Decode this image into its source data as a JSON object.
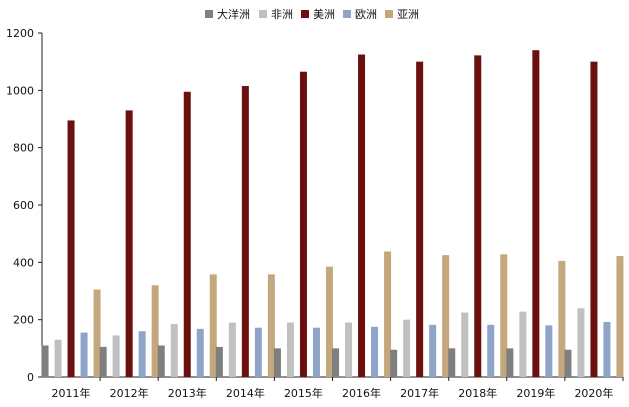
{
  "chart_data": {
    "type": "bar",
    "title": "",
    "xlabel": "",
    "ylabel": "",
    "categories": [
      "2011年",
      "2012年",
      "2013年",
      "2014年",
      "2015年",
      "2016年",
      "2017年",
      "2018年",
      "2019年",
      "2020年"
    ],
    "series": [
      {
        "name": "大洋洲",
        "color": "#7f7f7f",
        "values": [
          110,
          105,
          110,
          105,
          100,
          100,
          95,
          100,
          100,
          95
        ]
      },
      {
        "name": "非洲",
        "color": "#c0c0c0",
        "values": [
          130,
          145,
          185,
          190,
          190,
          190,
          200,
          225,
          228,
          240
        ]
      },
      {
        "name": "美洲",
        "color": "#6b0f0f",
        "values": [
          895,
          930,
          995,
          1015,
          1065,
          1125,
          1100,
          1122,
          1140,
          1100
        ]
      },
      {
        "name": "欧洲",
        "color": "#8ea4c8",
        "values": [
          155,
          160,
          168,
          172,
          172,
          175,
          182,
          182,
          180,
          192
        ]
      },
      {
        "name": "亚洲",
        "color": "#c4a77d",
        "values": [
          305,
          320,
          358,
          358,
          385,
          438,
          425,
          428,
          405,
          422
        ]
      }
    ],
    "ylim": [
      0,
      1200
    ],
    "yticks": [
      0,
      200,
      400,
      600,
      800,
      1000,
      1200
    ],
    "grid": false,
    "legend": "top-center"
  }
}
